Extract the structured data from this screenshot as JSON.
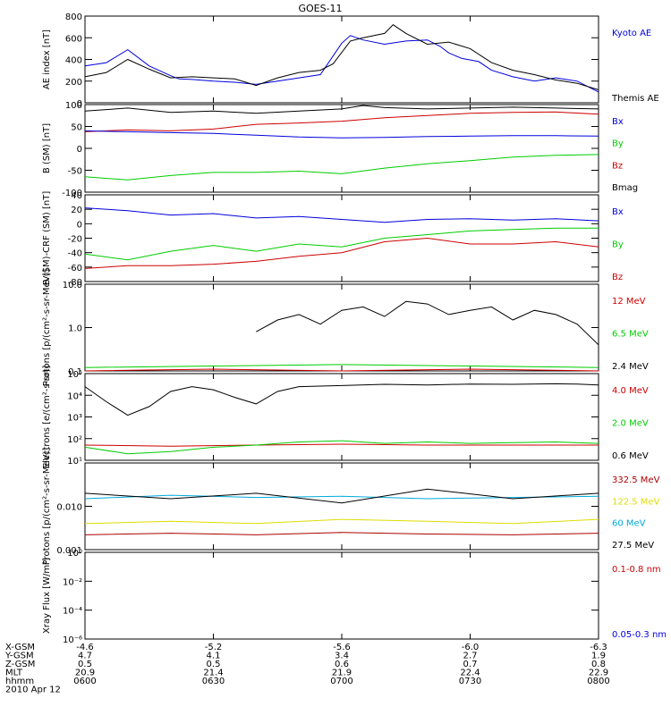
{
  "title": "GOES-11",
  "chart_data": [
    {
      "type": "line",
      "ylabel": "AE index [nT]",
      "ylim": [
        0,
        800
      ],
      "yticks": [
        "800",
        "600",
        "400",
        "200",
        "0"
      ],
      "ytick_values": [
        800,
        600,
        400,
        200,
        0
      ],
      "legend": [
        {
          "name": "Kyoto AE",
          "color": "#0000dd"
        },
        {
          "name": "Themis AE",
          "color": "#000000"
        }
      ],
      "series": [
        {
          "name": "Kyoto AE",
          "color": "#0000dd",
          "x": [
            0,
            5,
            10,
            15,
            20,
            22,
            25,
            30,
            35,
            40,
            45,
            50,
            55,
            60,
            62,
            65,
            70,
            75,
            80,
            83,
            85,
            88,
            92,
            95,
            100,
            105,
            110,
            115,
            120
          ],
          "y": [
            340,
            370,
            490,
            340,
            250,
            220,
            215,
            200,
            190,
            170,
            200,
            230,
            260,
            550,
            620,
            580,
            540,
            570,
            580,
            520,
            460,
            410,
            380,
            300,
            240,
            200,
            230,
            200,
            100
          ]
        },
        {
          "name": "Themis AE",
          "color": "#000000",
          "x": [
            0,
            5,
            10,
            15,
            20,
            25,
            30,
            35,
            40,
            45,
            50,
            55,
            58,
            62,
            65,
            70,
            72,
            75,
            80,
            85,
            90,
            95,
            100,
            105,
            110,
            115,
            120
          ],
          "y": [
            240,
            280,
            400,
            310,
            230,
            240,
            230,
            220,
            160,
            230,
            280,
            300,
            360,
            570,
            600,
            640,
            720,
            640,
            540,
            560,
            500,
            370,
            300,
            260,
            210,
            180,
            120
          ]
        }
      ]
    },
    {
      "type": "line",
      "ylabel": "B (SM) [nT]",
      "ylim": [
        -100,
        100
      ],
      "yticks": [
        "100",
        "50",
        "0",
        "-50",
        "-100"
      ],
      "ytick_values": [
        100,
        50,
        0,
        -50,
        -100
      ],
      "legend": [
        {
          "name": "Bx",
          "color": "#0000dd"
        },
        {
          "name": "By",
          "color": "#00cc00"
        },
        {
          "name": "Bz",
          "color": "#cc0000"
        },
        {
          "name": "Bmag",
          "color": "#000000"
        }
      ],
      "series": [
        {
          "name": "Bmag",
          "color": "#000000",
          "x": [
            0,
            10,
            20,
            30,
            40,
            50,
            60,
            65,
            70,
            80,
            90,
            100,
            110,
            120
          ],
          "y": [
            85,
            92,
            82,
            85,
            80,
            85,
            90,
            98,
            93,
            90,
            92,
            94,
            92,
            90
          ]
        },
        {
          "name": "Bz",
          "color": "#cc0000",
          "x": [
            0,
            10,
            20,
            30,
            40,
            50,
            60,
            70,
            80,
            90,
            100,
            110,
            120
          ],
          "y": [
            38,
            42,
            40,
            44,
            55,
            58,
            62,
            70,
            75,
            80,
            82,
            83,
            78
          ]
        },
        {
          "name": "Bx",
          "color": "#0000dd",
          "x": [
            0,
            10,
            20,
            30,
            40,
            50,
            60,
            70,
            80,
            90,
            100,
            110,
            120
          ],
          "y": [
            40,
            38,
            36,
            34,
            30,
            26,
            24,
            25,
            27,
            28,
            29,
            29,
            28
          ]
        },
        {
          "name": "By",
          "color": "#00cc00",
          "x": [
            0,
            10,
            20,
            30,
            40,
            50,
            60,
            70,
            80,
            90,
            100,
            110,
            120
          ],
          "y": [
            -65,
            -72,
            -62,
            -55,
            -55,
            -52,
            -58,
            -45,
            -35,
            -28,
            -20,
            -16,
            -14
          ]
        }
      ]
    },
    {
      "type": "line",
      "ylabel": "B (SM)-CRF (SM) [nT]",
      "ylim": [
        -80,
        40
      ],
      "yticks": [
        "40",
        "20",
        "0",
        "-20",
        "-40",
        "-60",
        "-80"
      ],
      "ytick_values": [
        40,
        20,
        0,
        -20,
        -40,
        -60,
        -80
      ],
      "legend": [
        {
          "name": "Bx",
          "color": "#0000dd"
        },
        {
          "name": "By",
          "color": "#00cc00"
        },
        {
          "name": "Bz",
          "color": "#cc0000"
        }
      ],
      "series": [
        {
          "name": "Bx",
          "color": "#0000dd",
          "x": [
            0,
            10,
            20,
            30,
            40,
            50,
            60,
            70,
            80,
            90,
            100,
            110,
            120
          ],
          "y": [
            22,
            18,
            12,
            14,
            8,
            10,
            6,
            2,
            6,
            7,
            5,
            7,
            4
          ]
        },
        {
          "name": "By",
          "color": "#00cc00",
          "x": [
            0,
            10,
            20,
            30,
            40,
            50,
            60,
            70,
            80,
            90,
            100,
            110,
            120
          ],
          "y": [
            -42,
            -50,
            -38,
            -30,
            -38,
            -28,
            -32,
            -20,
            -15,
            -10,
            -8,
            -6,
            -6
          ]
        },
        {
          "name": "Bz",
          "color": "#cc0000",
          "x": [
            0,
            10,
            20,
            30,
            40,
            50,
            60,
            70,
            80,
            90,
            100,
            110,
            120
          ],
          "y": [
            -62,
            -58,
            -58,
            -56,
            -52,
            -45,
            -40,
            -25,
            -20,
            -28,
            -28,
            -25,
            -32
          ]
        }
      ]
    },
    {
      "type": "line",
      "ylabel": "Protons [p/(cm²-s-sr-MeV)]",
      "yscale": "log",
      "ylim": [
        0.1,
        10
      ],
      "yticks": [
        "10.0",
        "1.0",
        "0.1"
      ],
      "ytick_values": [
        10,
        1,
        0.1
      ],
      "legend": [
        {
          "name": "12 MeV",
          "color": "#cc0000"
        },
        {
          "name": "6.5 MeV",
          "color": "#00cc00"
        },
        {
          "name": "2.4 MeV",
          "color": "#000000"
        }
      ],
      "series": [
        {
          "name": "2.4 MeV",
          "color": "#000000",
          "x": [
            40,
            45,
            50,
            55,
            60,
            65,
            70,
            75,
            80,
            85,
            90,
            95,
            100,
            105,
            110,
            115,
            120
          ],
          "y": [
            0.8,
            1.5,
            2.0,
            1.2,
            2.5,
            3.0,
            1.8,
            4.0,
            3.5,
            2.0,
            2.5,
            3.0,
            1.5,
            2.5,
            2.0,
            1.2,
            0.4
          ]
        },
        {
          "name": "6.5 MeV",
          "color": "#00cc00",
          "x": [
            0,
            30,
            60,
            90,
            120
          ],
          "y": [
            0.12,
            0.13,
            0.14,
            0.13,
            0.12
          ]
        },
        {
          "name": "12 MeV",
          "color": "#cc0000",
          "x": [
            0,
            30,
            60,
            90,
            120
          ],
          "y": [
            0.1,
            0.11,
            0.1,
            0.11,
            0.1
          ]
        }
      ]
    },
    {
      "type": "line",
      "ylabel": "Electrons [e/(cm²-s-sr)]",
      "yscale": "log",
      "ylim": [
        10,
        100000
      ],
      "yticks": [
        "10⁵",
        "10⁴",
        "10³",
        "10²",
        "10¹"
      ],
      "ytick_values": [
        100000,
        10000,
        1000,
        100,
        10
      ],
      "legend": [
        {
          "name": "4.0 MeV",
          "color": "#cc0000"
        },
        {
          "name": "2.0 MeV",
          "color": "#00cc00"
        },
        {
          "name": "0.6 MeV",
          "color": "#000000"
        }
      ],
      "series": [
        {
          "name": "0.6 MeV",
          "color": "#000000",
          "x": [
            0,
            5,
            10,
            15,
            20,
            25,
            30,
            35,
            40,
            45,
            50,
            60,
            70,
            80,
            90,
            100,
            110,
            115,
            120
          ],
          "y": [
            25000,
            5000,
            1200,
            3000,
            15000,
            25000,
            18000,
            8000,
            4000,
            15000,
            25000,
            28000,
            32000,
            30000,
            33000,
            32000,
            34000,
            33000,
            30000
          ]
        },
        {
          "name": "4.0 MeV",
          "color": "#cc0000",
          "x": [
            0,
            20,
            40,
            60,
            80,
            100,
            120
          ],
          "y": [
            50,
            45,
            50,
            55,
            50,
            50,
            50
          ]
        },
        {
          "name": "2.0 MeV",
          "color": "#00cc00",
          "x": [
            0,
            10,
            20,
            30,
            40,
            50,
            60,
            70,
            80,
            90,
            100,
            110,
            120
          ],
          "y": [
            40,
            20,
            25,
            40,
            50,
            70,
            80,
            60,
            70,
            60,
            65,
            70,
            60
          ]
        }
      ]
    },
    {
      "type": "line",
      "ylabel": "Protons [p/(cm²-s-sr-MeV)]",
      "yscale": "log",
      "ylim": [
        0.001,
        0.1
      ],
      "yticks": [
        "0.010",
        "0.001"
      ],
      "ytick_values": [
        0.01,
        0.001
      ],
      "legend": [
        {
          "name": "332.5 MeV",
          "color": "#aa0000"
        },
        {
          "name": "122.5 MeV",
          "color": "#dddd00"
        },
        {
          "name": "60 MeV",
          "color": "#00aadd"
        },
        {
          "name": "27.5 MeV",
          "color": "#000000"
        }
      ],
      "series": [
        {
          "name": "60 MeV",
          "color": "#00aadd",
          "x": [
            0,
            20,
            40,
            60,
            80,
            100,
            120
          ],
          "y": [
            0.015,
            0.018,
            0.016,
            0.017,
            0.015,
            0.016,
            0.017
          ]
        },
        {
          "name": "27.5 MeV",
          "color": "#000000",
          "x": [
            0,
            20,
            40,
            60,
            80,
            100,
            120
          ],
          "y": [
            0.02,
            0.015,
            0.02,
            0.012,
            0.025,
            0.015,
            0.02
          ]
        },
        {
          "name": "122.5 MeV",
          "color": "#dddd00",
          "x": [
            0,
            20,
            40,
            60,
            80,
            100,
            120
          ],
          "y": [
            0.004,
            0.0045,
            0.004,
            0.005,
            0.0045,
            0.004,
            0.005
          ]
        },
        {
          "name": "332.5 MeV",
          "color": "#aa0000",
          "x": [
            0,
            20,
            40,
            60,
            80,
            100,
            120
          ],
          "y": [
            0.0022,
            0.0024,
            0.0022,
            0.0025,
            0.0023,
            0.0022,
            0.0024
          ]
        }
      ]
    },
    {
      "type": "line",
      "ylabel": "Xray Flux [W/m²]",
      "yscale": "log",
      "ylim": [
        1e-06,
        1
      ],
      "yticks": [
        "10⁰",
        "10⁻²",
        "10⁻⁴",
        "10⁻⁶"
      ],
      "ytick_values": [
        1,
        0.01,
        0.0001,
        1e-06
      ],
      "legend": [
        {
          "name": "0.1-0.8 nm",
          "color": "#cc0000"
        },
        {
          "name": "0.05-0.3 nm",
          "color": "#0000dd"
        }
      ],
      "series": []
    }
  ],
  "x_axis": {
    "rows": [
      {
        "label": "X-GSM",
        "values": [
          "-4.6",
          "-5.2",
          "-5.6",
          "-6.0",
          "-6.3"
        ]
      },
      {
        "label": "Y-GSM",
        "values": [
          "4.7",
          "4.1",
          "3.4",
          "2.7",
          "1.9"
        ]
      },
      {
        "label": "Z-GSM",
        "values": [
          "0.5",
          "0.5",
          "0.6",
          "0.7",
          "0.8"
        ]
      },
      {
        "label": "MLT",
        "values": [
          "20.9",
          "21.4",
          "21.9",
          "22.4",
          "22.9"
        ]
      },
      {
        "label": "hhmm",
        "values": [
          "0600",
          "0630",
          "0700",
          "0730",
          "0800"
        ]
      }
    ],
    "xlim": [
      0,
      120
    ],
    "major_ticks": [
      0,
      30,
      60,
      90,
      120
    ],
    "date": "2010 Apr 12"
  }
}
